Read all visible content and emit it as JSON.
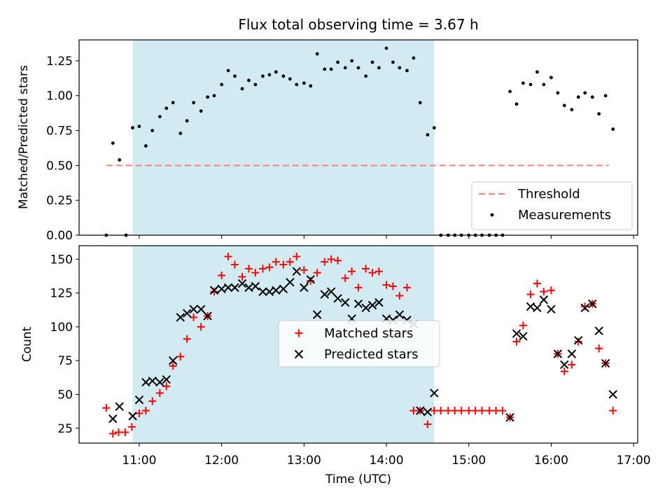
{
  "title": "Flux total observing time = 3.67 h",
  "colors": {
    "shade": "#add8e6",
    "threshold": "#ff7f7f",
    "measurements": "#000000",
    "matched": "#ff0000",
    "predicted": "#000000"
  },
  "chart_data": [
    {
      "type": "scatter",
      "ylabel": "Matched/Predicted stars",
      "xlim": [
        10.27,
        17.05
      ],
      "ylim": [
        0,
        1.4
      ],
      "yticks": [
        0.0,
        0.25,
        0.5,
        0.75,
        1.0,
        1.25
      ],
      "ytick_labels": [
        "0.00",
        "0.25",
        "0.50",
        "0.75",
        "1.00",
        "1.25"
      ],
      "shaded_span": [
        10.92,
        14.58
      ],
      "legend_position": "lower right",
      "threshold": {
        "name": "Threshold",
        "y": 0.5,
        "x": [
          10.6,
          16.7
        ]
      },
      "series": [
        {
          "name": "Measurements",
          "x": [
            10.6,
            10.68,
            10.76,
            10.84,
            10.92,
            11.0,
            11.08,
            11.16,
            11.25,
            11.33,
            11.41,
            11.5,
            11.58,
            11.66,
            11.75,
            11.83,
            11.91,
            12.0,
            12.08,
            12.16,
            12.25,
            12.33,
            12.41,
            12.5,
            12.58,
            12.66,
            12.75,
            12.83,
            12.91,
            13.0,
            13.08,
            13.16,
            13.25,
            13.33,
            13.41,
            13.5,
            13.58,
            13.66,
            13.75,
            13.83,
            13.91,
            14.0,
            14.08,
            14.16,
            14.25,
            14.33,
            14.41,
            14.5,
            14.58,
            14.66,
            14.75,
            14.83,
            14.91,
            15.0,
            15.08,
            15.16,
            15.25,
            15.33,
            15.41,
            15.5,
            15.58,
            15.66,
            15.75,
            15.83,
            15.91,
            16.0,
            16.08,
            16.16,
            16.25,
            16.33,
            16.41,
            16.5,
            16.58,
            16.66,
            16.75
          ],
          "y": [
            0.0,
            0.66,
            0.54,
            0.0,
            0.77,
            0.78,
            0.64,
            0.75,
            0.85,
            0.91,
            0.95,
            0.73,
            0.82,
            0.95,
            0.89,
            0.99,
            1.0,
            1.08,
            1.18,
            1.14,
            1.05,
            1.11,
            1.08,
            1.14,
            1.15,
            1.17,
            1.14,
            1.12,
            1.08,
            1.09,
            1.07,
            1.3,
            1.19,
            1.19,
            1.24,
            1.2,
            1.25,
            1.2,
            1.14,
            1.24,
            1.2,
            1.34,
            1.24,
            1.2,
            1.18,
            1.27,
            0.95,
            0.72,
            0.77,
            0.0,
            0.0,
            0.0,
            0.0,
            0.0,
            0.0,
            0.0,
            0.0,
            0.0,
            0.0,
            1.03,
            0.94,
            1.09,
            1.08,
            1.17,
            1.08,
            1.13,
            1.02,
            0.93,
            0.9,
            0.99,
            1.02,
            0.99,
            0.87,
            1.0,
            0.76
          ]
        }
      ]
    },
    {
      "type": "scatter",
      "xlabel": "Time (UTC)",
      "ylabel": "Count",
      "xlim": [
        10.27,
        17.05
      ],
      "ylim": [
        14,
        160
      ],
      "yticks": [
        25,
        50,
        75,
        100,
        125,
        150
      ],
      "ytick_labels": [
        "25",
        "50",
        "75",
        "100",
        "125",
        "150"
      ],
      "xticks": [
        11,
        12,
        13,
        14,
        15,
        16,
        17
      ],
      "xtick_labels": [
        "11:00",
        "12:00",
        "13:00",
        "14:00",
        "15:00",
        "16:00",
        "17:00"
      ],
      "shaded_span": [
        10.92,
        14.58
      ],
      "legend_position": "center",
      "series": [
        {
          "name": "Matched stars",
          "marker": "+",
          "x": [
            10.6,
            10.68,
            10.75,
            10.83,
            10.91,
            11.0,
            11.08,
            11.16,
            11.25,
            11.33,
            11.41,
            11.5,
            11.58,
            11.66,
            11.75,
            11.83,
            11.91,
            12.0,
            12.08,
            12.16,
            12.25,
            12.33,
            12.41,
            12.5,
            12.58,
            12.66,
            12.75,
            12.83,
            12.91,
            13.0,
            13.08,
            13.16,
            13.25,
            13.33,
            13.41,
            13.5,
            13.58,
            13.66,
            13.75,
            13.83,
            13.91,
            14.0,
            14.08,
            14.16,
            14.25,
            14.33,
            14.41,
            14.5,
            14.58,
            14.66,
            14.75,
            14.83,
            14.91,
            15.0,
            15.08,
            15.16,
            15.25,
            15.33,
            15.41,
            15.5,
            15.58,
            15.66,
            15.75,
            15.83,
            15.91,
            16.0,
            16.08,
            16.16,
            16.25,
            16.33,
            16.41,
            16.5,
            16.58,
            16.66,
            16.75
          ],
          "y": [
            40,
            21,
            22,
            22,
            26,
            36,
            38,
            45,
            51,
            56,
            71,
            78,
            91,
            107,
            100,
            108,
            126,
            138,
            152,
            146,
            137,
            143,
            140,
            143,
            144,
            148,
            146,
            148,
            152,
            142,
            134,
            140,
            148,
            150,
            149,
            136,
            141,
            129,
            143,
            140,
            141,
            131,
            130,
            123,
            129,
            38,
            38,
            28,
            38,
            38,
            38,
            38,
            38,
            38,
            38,
            38,
            38,
            38,
            38,
            33,
            89,
            101,
            124,
            132,
            126,
            127,
            80,
            67,
            72,
            89,
            115,
            117,
            84,
            73,
            38
          ]
        },
        {
          "name": "Predicted stars",
          "marker": "x",
          "x": [
            10.68,
            10.76,
            10.92,
            11.0,
            11.08,
            11.16,
            11.25,
            11.33,
            11.41,
            11.5,
            11.58,
            11.66,
            11.75,
            11.83,
            11.91,
            12.0,
            12.08,
            12.16,
            12.25,
            12.33,
            12.41,
            12.5,
            12.58,
            12.66,
            12.75,
            12.83,
            12.91,
            13.0,
            13.08,
            13.16,
            13.25,
            13.33,
            13.41,
            13.5,
            13.58,
            13.66,
            13.75,
            13.83,
            13.91,
            14.0,
            14.08,
            14.16,
            14.25,
            14.33,
            14.41,
            14.5,
            14.58,
            15.5,
            15.58,
            15.66,
            15.75,
            15.83,
            15.91,
            16.0,
            16.08,
            16.16,
            16.25,
            16.33,
            16.41,
            16.5,
            16.58,
            16.66,
            16.75
          ],
          "y": [
            32,
            41,
            34,
            46,
            59,
            60,
            59,
            61,
            75,
            107,
            110,
            113,
            113,
            108,
            127,
            128,
            129,
            129,
            132,
            129,
            130,
            126,
            126,
            127,
            128,
            133,
            141,
            129,
            135,
            109,
            124,
            126,
            121,
            118,
            106,
            117,
            114,
            116,
            118,
            106,
            105,
            109,
            105,
            102,
            38,
            37,
            51,
            33,
            95,
            93,
            115,
            114,
            120,
            113,
            80,
            72,
            80,
            90,
            114,
            117,
            97,
            73,
            50
          ]
        }
      ]
    }
  ]
}
